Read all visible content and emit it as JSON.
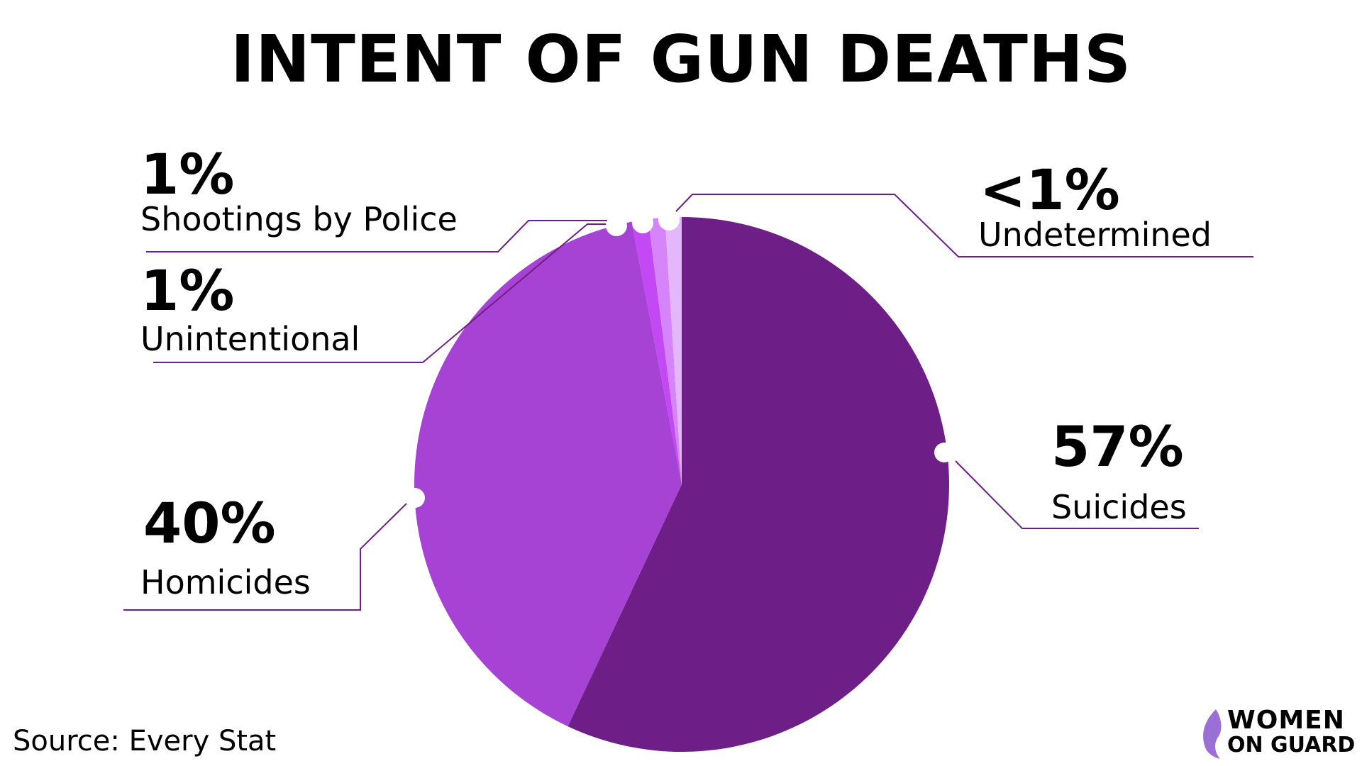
{
  "chart_data": {
    "type": "pie",
    "title": "INTENT OF GUN DEATHS",
    "slices": [
      {
        "name": "Suicides",
        "value": 57,
        "label": "57%",
        "color": "#6e1f87"
      },
      {
        "name": "Homicides",
        "value": 40,
        "label": "40%",
        "color": "#a642d4"
      },
      {
        "name": "Unintentional",
        "value": 1,
        "label": "1%",
        "color": "#c349f4"
      },
      {
        "name": "Shootings by Police",
        "value": 1,
        "label": "1%",
        "color": "#d584f9"
      },
      {
        "name": "Undetermined",
        "value": 1,
        "label": "<1%",
        "color": "#e4b6fc"
      }
    ],
    "start_angle": "top, clockwise"
  },
  "source": "Source: Every Stat",
  "logo": {
    "line1": "WOMEN",
    "line2": "ON GUARD"
  },
  "line_color": "#6e1f87"
}
